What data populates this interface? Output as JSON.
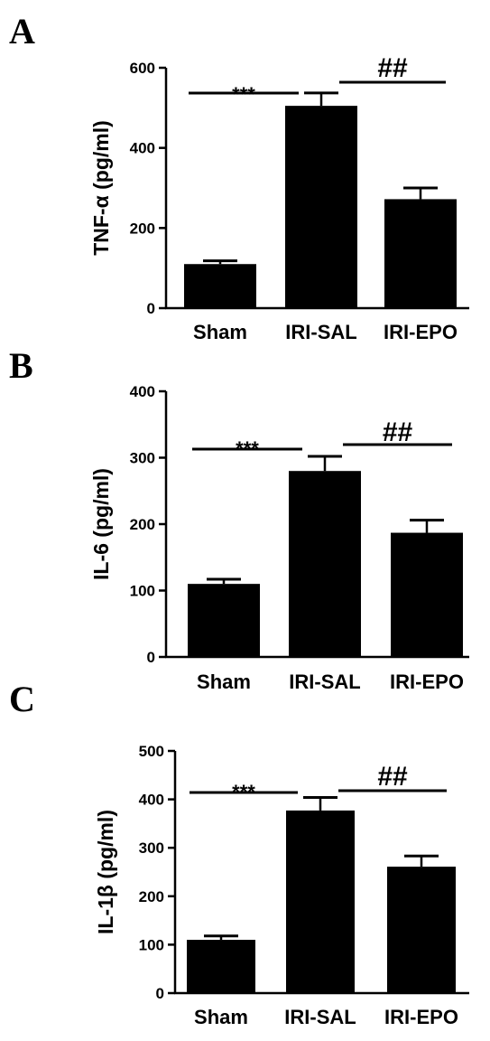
{
  "chart_data": [
    {
      "type": "bar",
      "panel_label": "A",
      "categories": [
        "Sham",
        "IRI-SAL",
        "IRI-EPO"
      ],
      "values": [
        110,
        505,
        272
      ],
      "errors": [
        8,
        32,
        28
      ],
      "ylabel": "TNF-α (pg/ml)",
      "ylim": [
        0,
        600
      ],
      "yticks": [
        0,
        200,
        400,
        600
      ],
      "annotations": [
        {
          "text": "***",
          "from": "Sham",
          "to": "IRI-SAL"
        },
        {
          "text": "##",
          "from": "IRI-SAL",
          "to": "IRI-EPO"
        }
      ]
    },
    {
      "type": "bar",
      "panel_label": "B",
      "categories": [
        "Sham",
        "IRI-SAL",
        "IRI-EPO"
      ],
      "values": [
        110,
        280,
        187
      ],
      "errors": [
        7,
        22,
        19
      ],
      "ylabel": "IL-6 (pg/ml)",
      "ylim": [
        0,
        400
      ],
      "yticks": [
        0,
        100,
        200,
        300,
        400
      ],
      "annotations": [
        {
          "text": "***",
          "from": "Sham",
          "to": "IRI-SAL"
        },
        {
          "text": "##",
          "from": "IRI-SAL",
          "to": "IRI-EPO"
        }
      ]
    },
    {
      "type": "bar",
      "panel_label": "C",
      "categories": [
        "Sham",
        "IRI-SAL",
        "IRI-EPO"
      ],
      "values": [
        110,
        377,
        261
      ],
      "errors": [
        8,
        27,
        22
      ],
      "ylabel": "IL-1β (pg/ml)",
      "ylim": [
        0,
        500
      ],
      "yticks": [
        0,
        100,
        200,
        300,
        400,
        500
      ],
      "annotations": [
        {
          "text": "***",
          "from": "Sham",
          "to": "IRI-SAL"
        },
        {
          "text": "##",
          "from": "IRI-SAL",
          "to": "IRI-EPO"
        }
      ]
    }
  ]
}
